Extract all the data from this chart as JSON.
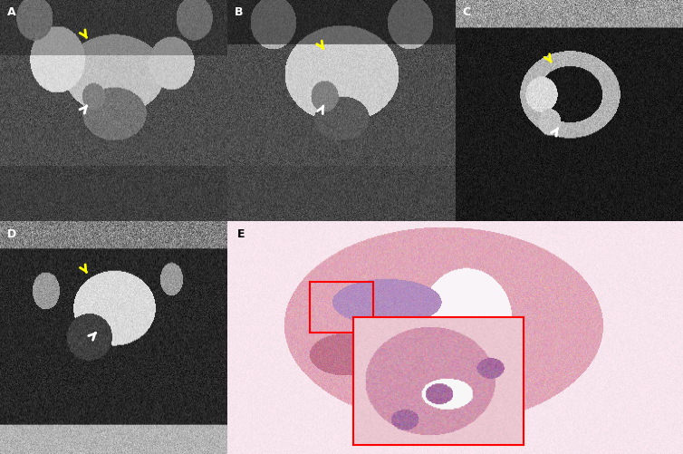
{
  "figsize": [
    7.54,
    5.01
  ],
  "dpi": 100,
  "background": "#ffffff",
  "panels": {
    "A": {
      "row": 0,
      "col": 0,
      "label": "A",
      "type": "mri_t2_baseline"
    },
    "B": {
      "row": 0,
      "col": 1,
      "label": "B",
      "type": "mri_t2_post"
    },
    "C": {
      "row": 0,
      "col": 2,
      "label": "C",
      "type": "mri_dw"
    },
    "D": {
      "row": 1,
      "col": 0,
      "label": "D",
      "type": "mri_adc"
    },
    "E": {
      "row": 1,
      "col": 1,
      "label": "E",
      "type": "pathology",
      "colspan": 2
    }
  },
  "label_color": "#ffffff",
  "label_fontsize": 9,
  "arrow_white": "#ffffff",
  "arrow_yellow": "#ffff00",
  "red_box_color": "#ff0000"
}
